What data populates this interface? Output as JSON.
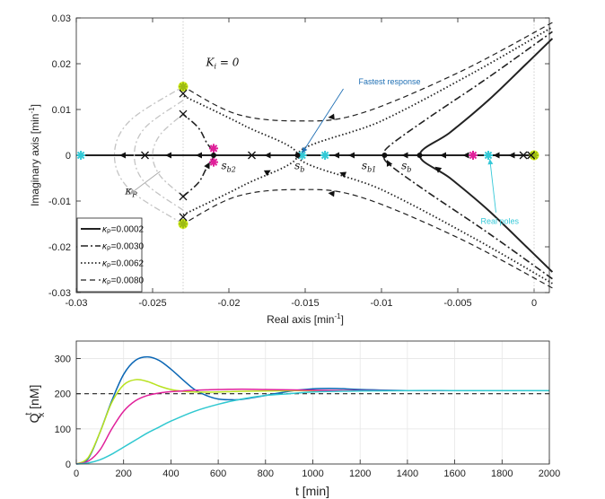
{
  "chart_data": [
    {
      "type": "scatter",
      "title": "",
      "xlabel": "Real axis [min",
      "xlabel_sup": "-1",
      "xlabel_end": "]",
      "ylabel": "Imaginary axis [min",
      "ylabel_sup": "-1",
      "ylabel_end": "]",
      "xlim": [
        -0.03,
        0.001
      ],
      "ylim": [
        -0.03,
        0.03
      ],
      "xticks": [
        -0.03,
        -0.025,
        -0.02,
        -0.015,
        -0.01,
        -0.005,
        0
      ],
      "xtick_labels": [
        "-0.03",
        "-0.025",
        "-0.02",
        "-0.015",
        "-0.01",
        "-0.005",
        "0"
      ],
      "yticks": [
        -0.03,
        -0.02,
        -0.01,
        0,
        0.01,
        0.02,
        0.03
      ],
      "ytick_labels": [
        "-0.03",
        "-0.02",
        "-0.01",
        "0",
        "0.01",
        "0.02",
        "0.03"
      ],
      "legend": {
        "position": "bottom-left",
        "entries": [
          {
            "label": "=0.0002",
            "style": "solid"
          },
          {
            "label": "=0.0030",
            "style": "dashdot"
          },
          {
            "label": "=0.0062",
            "style": "dotted"
          },
          {
            "label": "=0.0080",
            "style": "dashed"
          }
        ],
        "symbol": "κP"
      },
      "series": [
        {
          "name": "κP=0.0002",
          "style": "solid",
          "points": [
            [
              0.0012,
              -0.0255
            ],
            [
              -0.0005,
              -0.02
            ],
            [
              -0.003,
              -0.012
            ],
            [
              -0.0055,
              -0.005
            ],
            [
              -0.0075,
              0
            ],
            [
              -0.0055,
              0.005
            ],
            [
              -0.003,
              0.012
            ],
            [
              -0.0005,
              0.02
            ],
            [
              0.0012,
              0.0255
            ]
          ]
        },
        {
          "name": "κP=0.0030",
          "style": "dashdot",
          "points": [
            [
              0.0012,
              -0.027
            ],
            [
              -0.003,
              -0.017
            ],
            [
              -0.007,
              -0.008
            ],
            [
              -0.0095,
              -0.002
            ],
            [
              -0.0098,
              0
            ],
            [
              -0.0095,
              0.002
            ],
            [
              -0.007,
              0.008
            ],
            [
              -0.003,
              0.017
            ],
            [
              0.0012,
              0.027
            ]
          ]
        },
        {
          "name": "κP=0.0030 branch",
          "style": "dashdot",
          "points": [
            [
              -0.023,
              -0.009
            ],
            [
              -0.022,
              -0.006
            ],
            [
              -0.0215,
              -0.003
            ],
            [
              -0.021,
              0
            ],
            [
              -0.0215,
              0.003
            ],
            [
              -0.022,
              0.006
            ],
            [
              -0.023,
              0.009
            ]
          ]
        },
        {
          "name": "κP=0.0062",
          "style": "dotted",
          "points": [
            [
              0.0012,
              -0.028
            ],
            [
              -0.004,
              -0.018
            ],
            [
              -0.01,
              -0.0075
            ],
            [
              -0.0155,
              0
            ],
            [
              -0.01,
              0.0075
            ],
            [
              -0.004,
              0.018
            ],
            [
              0.0012,
              0.028
            ]
          ]
        },
        {
          "name": "κP=0.0062 branch",
          "style": "dotted",
          "points": [
            [
              -0.023,
              -0.013
            ],
            [
              -0.019,
              -0.0065
            ],
            [
              -0.0155,
              0
            ],
            [
              -0.019,
              0.0065
            ],
            [
              -0.023,
              0.013
            ]
          ]
        },
        {
          "name": "κP=0.0080",
          "style": "dashed",
          "points": [
            [
              0.0012,
              -0.029
            ],
            [
              -0.005,
              -0.018
            ],
            [
              -0.0115,
              -0.009
            ],
            [
              -0.0155,
              -0.0075
            ],
            [
              -0.0195,
              -0.009
            ],
            [
              -0.023,
              -0.015
            ]
          ]
        },
        {
          "name": "κP=0.0080 upper",
          "style": "dashed",
          "points": [
            [
              0.0012,
              0.029
            ],
            [
              -0.005,
              0.018
            ],
            [
              -0.0115,
              0.009
            ],
            [
              -0.0155,
              0.0075
            ],
            [
              -0.0195,
              0.009
            ],
            [
              -0.023,
              0.015
            ]
          ]
        },
        {
          "name": "real axis locus",
          "style": "solid",
          "points": [
            [
              -0.0295,
              0
            ],
            [
              0,
              0
            ]
          ]
        },
        {
          "name": "Ki=0 grey",
          "style": "dashdot-grey",
          "points": [
            [
              -0.023,
              -0.015
            ],
            [
              -0.0265,
              -0.0075
            ],
            [
              -0.0275,
              0
            ],
            [
              -0.0265,
              0.0075
            ],
            [
              -0.023,
              0.015
            ]
          ]
        },
        {
          "name": "Ki=0 grey 2",
          "style": "dashdot-grey",
          "points": [
            [
              -0.023,
              -0.012
            ],
            [
              -0.0255,
              -0.006
            ],
            [
              -0.0262,
              0
            ],
            [
              -0.0255,
              0.006
            ],
            [
              -0.023,
              0.012
            ]
          ]
        },
        {
          "name": "Ki=0 grey 3",
          "style": "dashdot-grey",
          "points": [
            [
              -0.023,
              -0.009
            ],
            [
              -0.0245,
              -0.0045
            ],
            [
              -0.025,
              0
            ],
            [
              -0.0245,
              0.0045
            ],
            [
              -0.023,
              0.009
            ]
          ]
        }
      ],
      "markers": {
        "cyan": [
          [
            -0.0297,
            0
          ],
          [
            -0.0152,
            0
          ],
          [
            -0.0137,
            0
          ],
          [
            -0.003,
            0
          ]
        ],
        "magenta": [
          [
            -0.021,
            0.0015
          ],
          [
            -0.021,
            -0.0015
          ],
          [
            -0.004,
            0
          ]
        ],
        "yellow": [
          [
            -0.023,
            0.015
          ],
          [
            -0.023,
            -0.015
          ],
          [
            0,
            0
          ]
        ],
        "x_marks": [
          [
            -0.023,
            0.0135
          ],
          [
            -0.023,
            0.009
          ],
          [
            -0.023,
            -0.009
          ],
          [
            -0.023,
            -0.0135
          ],
          [
            -0.0185,
            0
          ],
          [
            -0.0255,
            0
          ],
          [
            -0.0007,
            0
          ],
          [
            -0.0002,
            0
          ]
        ],
        "dots": [
          [
            -0.021,
            0
          ],
          [
            -0.0155,
            0
          ],
          [
            -0.0098,
            0
          ],
          [
            -0.0075,
            0
          ]
        ]
      },
      "annotations": [
        {
          "text": "Fastest response",
          "x": -0.0115,
          "y": 0.0155,
          "color": "#1f6fb4"
        },
        {
          "text": "Real poles",
          "x": -0.0035,
          "y": -0.015,
          "color": "#35c8d8"
        },
        {
          "text": "K",
          "sub": "i",
          "rest": " = 0",
          "x": -0.0215,
          "y": 0.0195,
          "color": "#aaaaaa"
        },
        {
          "text": "κ",
          "sub": "P",
          "x": -0.0268,
          "y": -0.0085,
          "color": "#aaaaaa"
        },
        {
          "text": "s",
          "sub": "b2",
          "x": -0.0205,
          "y": -0.003
        },
        {
          "text": "s",
          "sub": "b",
          "x": -0.0157,
          "y": -0.003
        },
        {
          "text": "s",
          "sub": "b1",
          "x": -0.0113,
          "y": -0.003
        },
        {
          "text": "s",
          "sub": "b",
          "x": -0.0087,
          "y": -0.003
        }
      ]
    },
    {
      "type": "line",
      "title": "",
      "xlabel": "t [min]",
      "ylabel": "Q",
      "ylabel_sub": "x",
      "ylabel_sup": "t",
      "ylabel_end": " [nM]",
      "xlim": [
        0,
        2000
      ],
      "ylim": [
        0,
        350
      ],
      "xticks": [
        0,
        200,
        400,
        600,
        800,
        1000,
        1200,
        1400,
        1600,
        1800,
        2000
      ],
      "xtick_labels": [
        "0",
        "200",
        "400",
        "600",
        "800",
        "1000",
        "1200",
        "1400",
        "1600",
        "1800",
        "2000"
      ],
      "yticks": [
        0,
        100,
        200,
        300
      ],
      "ytick_labels": [
        "0",
        "100",
        "200",
        "300"
      ],
      "reference": 200,
      "series": [
        {
          "name": "blue",
          "color": "#0b67b5",
          "x": [
            0,
            50,
            100,
            150,
            200,
            250,
            300,
            350,
            400,
            450,
            500,
            550,
            600,
            650,
            700,
            800,
            900,
            1000,
            1100,
            1200,
            1400,
            1600,
            1800,
            2000
          ],
          "y": [
            0,
            15,
            90,
            180,
            255,
            295,
            305,
            295,
            270,
            240,
            212,
            195,
            185,
            183,
            184,
            195,
            207,
            214,
            215,
            212,
            209,
            209,
            209,
            209
          ]
        },
        {
          "name": "yellow-green",
          "color": "#b8e21f",
          "x": [
            0,
            50,
            100,
            150,
            200,
            250,
            300,
            350,
            400,
            450,
            500,
            600,
            700,
            800,
            1000,
            1200,
            1400,
            1600,
            1800,
            2000
          ],
          "y": [
            0,
            18,
            90,
            175,
            225,
            240,
            235,
            222,
            212,
            207,
            205,
            205,
            207,
            208,
            209,
            209,
            209,
            209,
            209,
            209
          ]
        },
        {
          "name": "magenta",
          "color": "#e0209a",
          "x": [
            0,
            50,
            100,
            150,
            200,
            250,
            300,
            350,
            400,
            450,
            500,
            550,
            600,
            700,
            800,
            900,
            1000,
            1200,
            1400,
            1600,
            1800,
            2000
          ],
          "y": [
            0,
            8,
            40,
            100,
            150,
            180,
            195,
            202,
            206,
            208,
            210,
            211,
            212,
            213,
            212,
            211,
            210,
            209,
            209,
            209,
            209,
            209
          ]
        },
        {
          "name": "cyan",
          "color": "#30c8d0",
          "x": [
            0,
            50,
            100,
            150,
            200,
            250,
            300,
            350,
            400,
            500,
            600,
            700,
            800,
            900,
            1000,
            1200,
            1400,
            1600,
            1800,
            2000
          ],
          "y": [
            0,
            3,
            12,
            28,
            48,
            68,
            88,
            105,
            122,
            150,
            170,
            185,
            195,
            200,
            205,
            208,
            209,
            209,
            209,
            209
          ]
        }
      ]
    }
  ]
}
